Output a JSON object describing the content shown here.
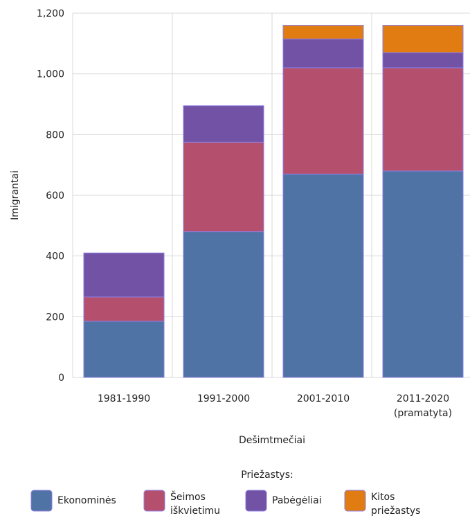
{
  "chart_data": {
    "type": "bar",
    "stacked": true,
    "categories": [
      [
        "1981-1990"
      ],
      [
        "1991-2000"
      ],
      [
        "2001-2010"
      ],
      [
        "2011-2020",
        "(pramatyta)"
      ]
    ],
    "series": [
      {
        "name": "Ekonominės",
        "color": "#4e73a4",
        "values": [
          185,
          480,
          670,
          680
        ]
      },
      {
        "name": "Šeimos iškvietimu",
        "color": "#b4506e",
        "values": [
          80,
          295,
          350,
          340
        ]
      },
      {
        "name": "Pabėgėliai",
        "color": "#7152a5",
        "values": [
          145,
          120,
          95,
          50
        ]
      },
      {
        "name": "Kitos priežastys",
        "color": "#e07c12",
        "values": [
          0,
          0,
          45,
          90
        ]
      }
    ],
    "legend_lines": [
      [
        "Ekonominės"
      ],
      [
        "Šeimos",
        "iškvietimu"
      ],
      [
        "Pabėgėliai"
      ],
      [
        "Kitos",
        "priežastys"
      ]
    ],
    "xlabel": "Dešimtmečiai",
    "ylabel": "Imigrantai",
    "ylim": [
      0,
      1200
    ],
    "yticks": [
      0,
      200,
      400,
      600,
      800,
      1000,
      1200
    ],
    "ytick_labels": [
      "0",
      "200",
      "400",
      "600",
      "800",
      "1,000",
      "1,200"
    ],
    "legend_title": "Priežastys:",
    "legend_position": "bottom",
    "grid": true
  }
}
